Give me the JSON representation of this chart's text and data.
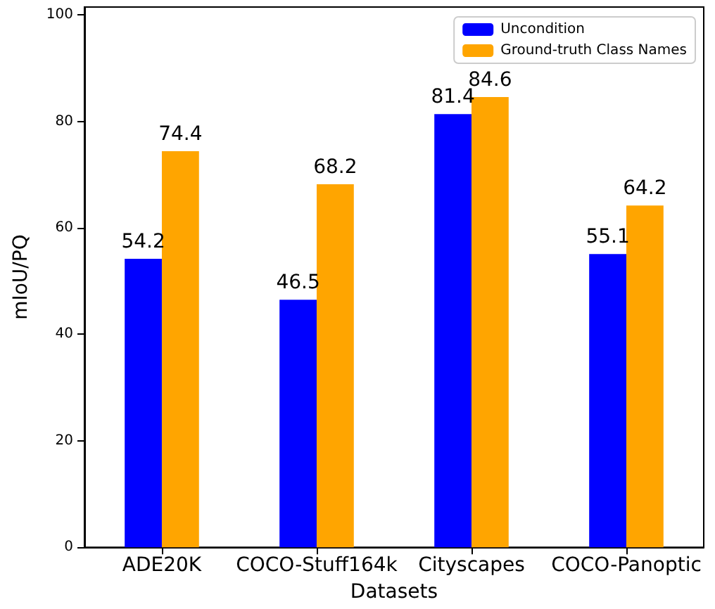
{
  "chart_data": {
    "type": "bar",
    "xlabel": "Datasets",
    "ylabel": "mIoU/PQ",
    "categories": [
      "ADE20K",
      "COCO-Stuff164k",
      "Cityscapes",
      "COCO-Panoptic"
    ],
    "series": [
      {
        "name": "Uncondition",
        "color": "#0000ff",
        "values": [
          54.2,
          46.5,
          81.4,
          55.1
        ]
      },
      {
        "name": "Ground-truth Class Names",
        "color": "#ffa500",
        "values": [
          74.4,
          68.2,
          84.6,
          64.2
        ]
      }
    ],
    "ylim": [
      0,
      101.5
    ],
    "yticks": [
      0,
      20,
      40,
      60,
      80,
      100
    ],
    "data_labels": true,
    "grid": false,
    "legend": "top right"
  }
}
